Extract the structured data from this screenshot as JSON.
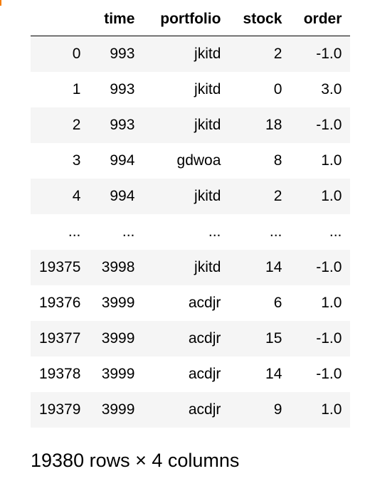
{
  "table": {
    "index_header": "",
    "columns": [
      "time",
      "portfolio",
      "stock",
      "order"
    ],
    "rows": [
      {
        "index": "0",
        "time": "993",
        "portfolio": "jkitd",
        "stock": "2",
        "order": "-1.0"
      },
      {
        "index": "1",
        "time": "993",
        "portfolio": "jkitd",
        "stock": "0",
        "order": "3.0"
      },
      {
        "index": "2",
        "time": "993",
        "portfolio": "jkitd",
        "stock": "18",
        "order": "-1.0"
      },
      {
        "index": "3",
        "time": "994",
        "portfolio": "gdwoa",
        "stock": "8",
        "order": "1.0"
      },
      {
        "index": "4",
        "time": "994",
        "portfolio": "jkitd",
        "stock": "2",
        "order": "1.0"
      },
      {
        "index": "...",
        "time": "...",
        "portfolio": "...",
        "stock": "...",
        "order": "..."
      },
      {
        "index": "19375",
        "time": "3998",
        "portfolio": "jkitd",
        "stock": "14",
        "order": "-1.0"
      },
      {
        "index": "19376",
        "time": "3999",
        "portfolio": "acdjr",
        "stock": "6",
        "order": "1.0"
      },
      {
        "index": "19377",
        "time": "3999",
        "portfolio": "acdjr",
        "stock": "15",
        "order": "-1.0"
      },
      {
        "index": "19378",
        "time": "3999",
        "portfolio": "acdjr",
        "stock": "14",
        "order": "-1.0"
      },
      {
        "index": "19379",
        "time": "3999",
        "portfolio": "acdjr",
        "stock": "9",
        "order": "1.0"
      }
    ]
  },
  "footer": "19380 rows × 4 columns",
  "colors": {
    "stripe": "#f5f5f5",
    "marker": "#f57c00"
  }
}
